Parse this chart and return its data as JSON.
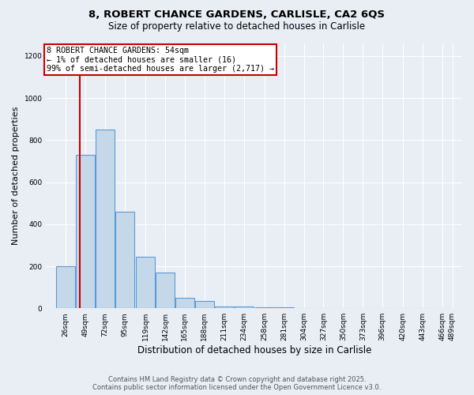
{
  "title1": "8, ROBERT CHANCE GARDENS, CARLISLE, CA2 6QS",
  "title2": "Size of property relative to detached houses in Carlisle",
  "xlabel": "Distribution of detached houses by size in Carlisle",
  "ylabel": "Number of detached properties",
  "bin_edges": [
    26,
    49,
    72,
    95,
    119,
    142,
    165,
    188,
    211,
    234,
    258,
    281,
    304,
    327,
    350,
    373,
    396,
    420,
    443,
    466,
    489
  ],
  "bin_counts": [
    200,
    730,
    850,
    460,
    245,
    170,
    50,
    35,
    10,
    8,
    5,
    3,
    2,
    2,
    2,
    1,
    1,
    1,
    1,
    1
  ],
  "bar_color": "#c5d8ea",
  "bar_edge_color": "#5b9bd5",
  "property_size": 54,
  "property_line_color": "#cc0000",
  "annotation_text": "8 ROBERT CHANCE GARDENS: 54sqm\n← 1% of detached houses are smaller (16)\n99% of semi-detached houses are larger (2,717) →",
  "annotation_box_color": "#cc0000",
  "ylim": [
    0,
    1260
  ],
  "yticks": [
    0,
    200,
    400,
    600,
    800,
    1000,
    1200
  ],
  "footer1": "Contains HM Land Registry data © Crown copyright and database right 2025.",
  "footer2": "Contains public sector information licensed under the Open Government Licence v3.0.",
  "bg_color": "#e8eef4",
  "plot_bg_color": "#e8eef4",
  "grid_color": "#ffffff"
}
